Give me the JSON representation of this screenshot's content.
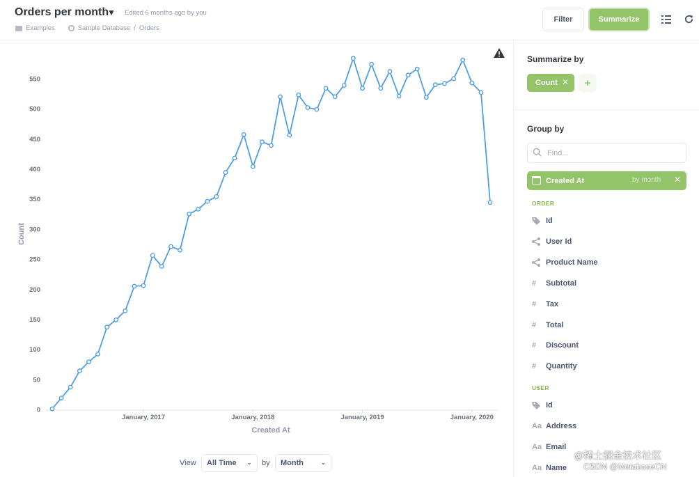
{
  "header": {
    "title": "Orders per month",
    "edited": "Edited 6 months ago by you",
    "breadcrumb_collection": "Examples",
    "breadcrumb_database": "Sample Database",
    "breadcrumb_sep": "/",
    "breadcrumb_table": "Orders",
    "filter_label": "Filter",
    "summarize_label": "Summarize"
  },
  "footer": {
    "view_label": "View",
    "time_value": "All Time",
    "by_label": "by",
    "unit_value": "Month"
  },
  "sidebar": {
    "summarize_heading": "Summarize by",
    "metric_label": "Count",
    "add_symbol": "+",
    "group_heading": "Group by",
    "find_placeholder": "Find...",
    "selected_group": "Created At",
    "selected_group_unit": "by month",
    "sections": [
      {
        "label": "ORDER",
        "fields": [
          {
            "name": "Id",
            "icon": "tag-icon"
          },
          {
            "name": "User Id",
            "icon": "connections-icon"
          },
          {
            "name": "Product Name",
            "icon": "connections-icon"
          },
          {
            "name": "Subtotal",
            "icon": "number-icon"
          },
          {
            "name": "Tax",
            "icon": "number-icon"
          },
          {
            "name": "Total",
            "icon": "number-icon"
          },
          {
            "name": "Discount",
            "icon": "number-icon"
          },
          {
            "name": "Quantity",
            "icon": "number-icon"
          }
        ]
      },
      {
        "label": "USER",
        "fields": [
          {
            "name": "Id",
            "icon": "tag-icon"
          },
          {
            "name": "Address",
            "icon": "text-icon"
          },
          {
            "name": "Email",
            "icon": "text-icon"
          },
          {
            "name": "Name",
            "icon": "text-icon"
          }
        ]
      }
    ]
  },
  "icons": {
    "number_glyph": "#",
    "text_glyph": "Aa",
    "close_glyph": "✕"
  },
  "watermark": {
    "line1": "@稀土掘金技术社区",
    "line2": "CSDN @MetabaseCN"
  },
  "colors": {
    "accent": "#93c46a",
    "line": "#509ee3"
  },
  "chart_data": {
    "type": "line",
    "title": "",
    "xlabel": "Created At",
    "ylabel": "Count",
    "ylim": [
      0,
      580
    ],
    "yticks": [
      0,
      50,
      100,
      150,
      200,
      250,
      300,
      350,
      400,
      450,
      500,
      550
    ],
    "xtick_labels": [
      "January, 2017",
      "January, 2018",
      "January, 2019",
      "January, 2020"
    ],
    "xtick_indices": [
      10,
      22,
      34,
      46
    ],
    "series": [
      {
        "name": "Count",
        "values": [
          1,
          19,
          37,
          64,
          79,
          92,
          137,
          149,
          164,
          205,
          206,
          256,
          238,
          271,
          265,
          325,
          333,
          346,
          354,
          394,
          418,
          457,
          404,
          445,
          439,
          520,
          456,
          523,
          502,
          499,
          534,
          520,
          539,
          584,
          534,
          574,
          534,
          562,
          521,
          556,
          566,
          519,
          540,
          542,
          550,
          581,
          543,
          527,
          344
        ]
      }
    ]
  }
}
